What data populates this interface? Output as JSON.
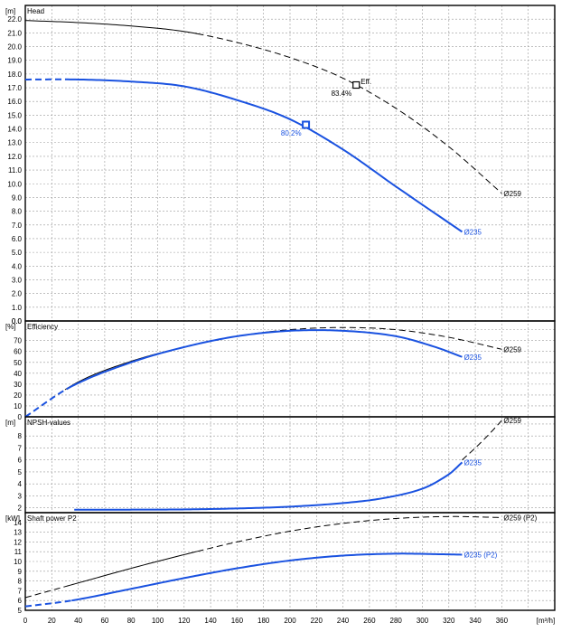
{
  "colors": {
    "d235": "#1a52e0",
    "d259": "#000000",
    "grid": "#9a9a9a"
  },
  "x_axis": {
    "unit": "[m³/h]",
    "min": 0,
    "max": 400,
    "step": 20
  },
  "chart_data": [
    {
      "type": "line",
      "title": "Head",
      "unit": "[m]",
      "xlim": [
        0,
        400
      ],
      "ylim": [
        0,
        23
      ],
      "ystep": 1,
      "ytick_decimals": 1,
      "series": [
        {
          "name": "Ø259",
          "color_key": "d259",
          "x": [
            0,
            40,
            80,
            120,
            160,
            200,
            240,
            280,
            320,
            360
          ],
          "y": [
            21.9,
            21.75,
            21.5,
            21.1,
            20.3,
            19.2,
            17.7,
            15.5,
            12.7,
            9.3
          ],
          "solid_range": [
            0,
            130
          ],
          "label_at": 360
        },
        {
          "name": "Ø235",
          "color_key": "d235",
          "x": [
            0,
            40,
            80,
            120,
            160,
            200,
            240,
            280,
            330
          ],
          "y": [
            17.6,
            17.6,
            17.45,
            17.1,
            16.1,
            14.7,
            12.5,
            9.8,
            6.5
          ],
          "solid_range": [
            30,
            330
          ],
          "label_at": 330
        }
      ],
      "markers": [
        {
          "x": 250,
          "y": 17.2,
          "color_key": "d259",
          "text": "83.4%",
          "tag": "Eff."
        },
        {
          "x": 212,
          "y": 14.3,
          "color_key": "d235",
          "text": "80.2%"
        }
      ]
    },
    {
      "type": "line",
      "title": "Efficiency",
      "unit": "[%]",
      "xlim": [
        0,
        400
      ],
      "ylim": [
        0,
        88
      ],
      "ystep": 10,
      "ytick_decimals": 0,
      "series": [
        {
          "name": "Ø259",
          "color_key": "d259",
          "x": [
            0,
            40,
            80,
            120,
            160,
            200,
            240,
            280,
            320,
            360
          ],
          "y": [
            0,
            32,
            51,
            64,
            74,
            80,
            82,
            80,
            73,
            62
          ],
          "solid_range": [
            30,
            185
          ],
          "label_at": 360
        },
        {
          "name": "Ø235",
          "color_key": "d235",
          "x": [
            0,
            35,
            80,
            120,
            160,
            200,
            240,
            280,
            310,
            330
          ],
          "y": [
            0,
            28,
            50,
            64,
            74,
            79,
            79,
            74,
            64,
            55
          ],
          "solid_range": [
            33,
            330
          ],
          "label_at": 330
        }
      ]
    },
    {
      "type": "line",
      "title": "NPSH-values",
      "unit": "[m]",
      "xlim": [
        0,
        400
      ],
      "ylim": [
        1.6,
        9.6
      ],
      "ystep": 1,
      "ytick_min": 2,
      "ytick_decimals": 0,
      "series": [
        {
          "name": "Ø259",
          "color_key": "d259",
          "x": [
            330,
            340,
            350,
            360
          ],
          "y": [
            6.0,
            7.0,
            8.1,
            9.3
          ],
          "solid_range": [
            9999,
            9999
          ],
          "label_at": 360
        },
        {
          "name": "Ø235",
          "color_key": "d235",
          "x": [
            37,
            80,
            120,
            160,
            200,
            240,
            270,
            300,
            320,
            330
          ],
          "y": [
            1.85,
            1.85,
            1.87,
            1.95,
            2.1,
            2.4,
            2.8,
            3.6,
            4.8,
            5.8
          ],
          "solid_range": [
            37,
            330
          ],
          "label_at": 330
        }
      ]
    },
    {
      "type": "line",
      "title": "Shaft power P2",
      "unit": "[kW]",
      "xlim": [
        0,
        400
      ],
      "ylim": [
        5,
        15
      ],
      "ystep": 1,
      "ytick_min": 5,
      "ytick_decimals": 0,
      "series": [
        {
          "name": "Ø259 (P2)",
          "color_key": "d259",
          "x": [
            0,
            40,
            80,
            120,
            160,
            200,
            240,
            280,
            320,
            360
          ],
          "y": [
            6.3,
            7.8,
            9.3,
            10.7,
            12.0,
            13.1,
            13.9,
            14.4,
            14.6,
            14.5
          ],
          "solid_range": [
            30,
            130
          ],
          "label_at": 360
        },
        {
          "name": "Ø235 (P2)",
          "color_key": "d235",
          "x": [
            0,
            35,
            80,
            120,
            160,
            200,
            240,
            280,
            310,
            330
          ],
          "y": [
            5.4,
            6.0,
            7.2,
            8.3,
            9.3,
            10.1,
            10.6,
            10.8,
            10.75,
            10.7
          ],
          "solid_range": [
            35,
            330
          ],
          "label_at": 330
        }
      ]
    }
  ]
}
